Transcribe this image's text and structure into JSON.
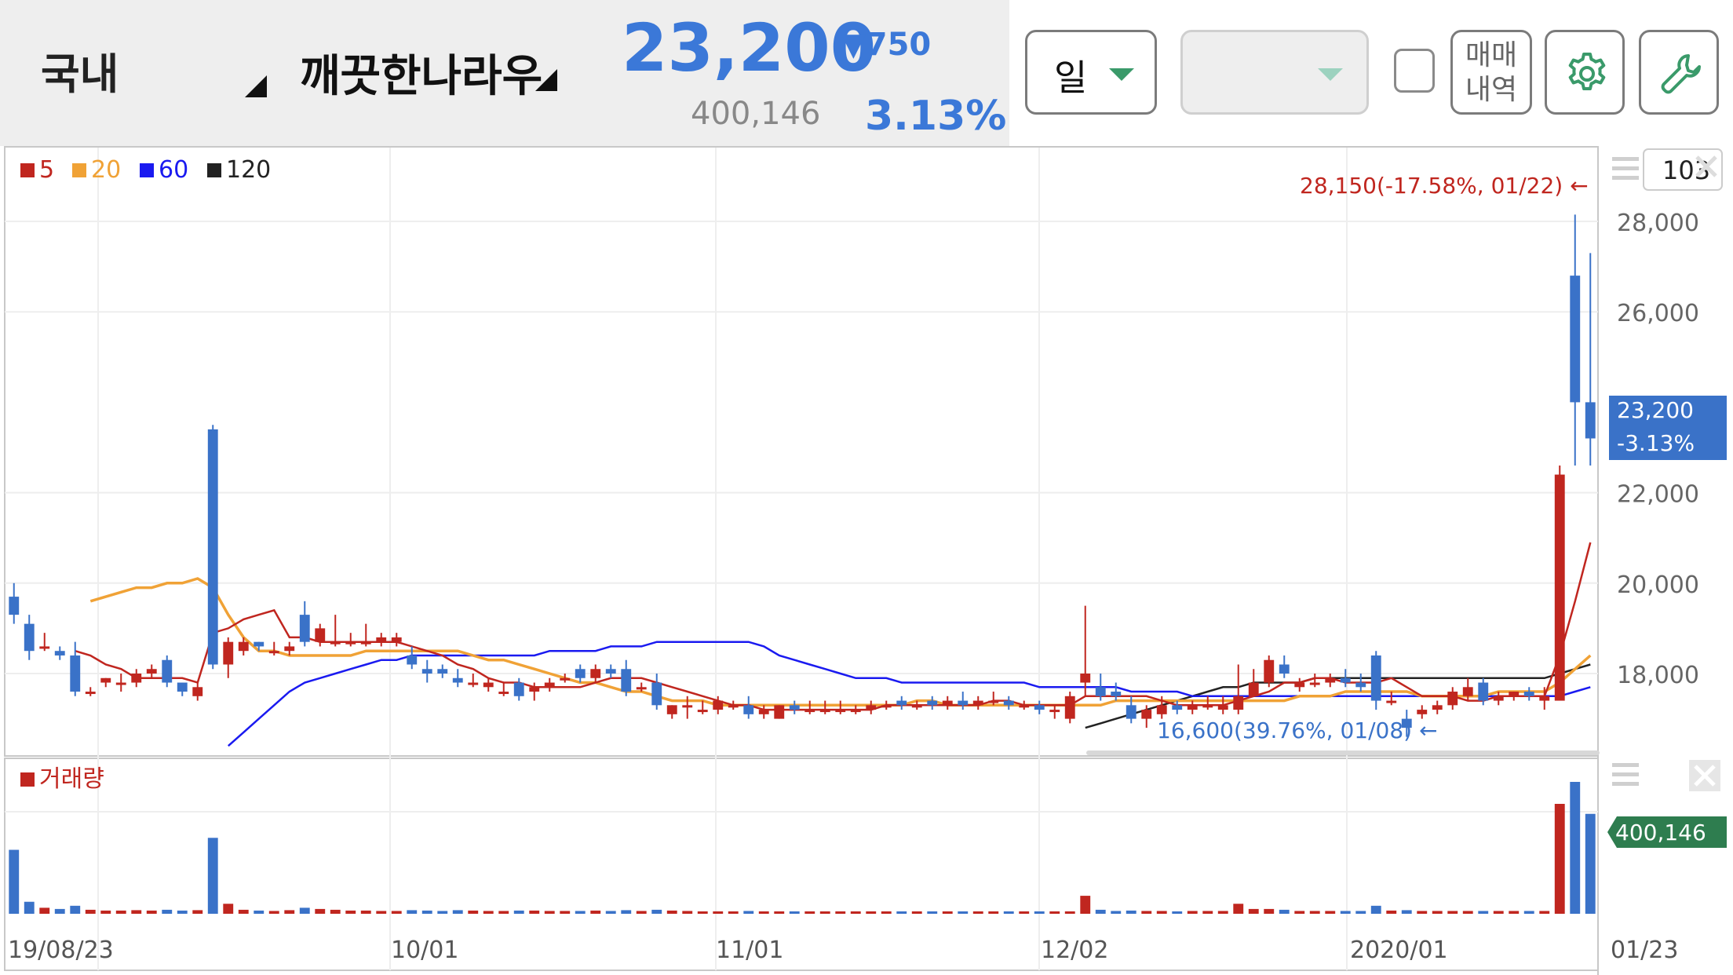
{
  "header": {
    "market": "국내",
    "stock_name": "깨끗한나라우",
    "price": "23,200",
    "change": "▼750",
    "volume": "400,146",
    "change_pct": "3.13%"
  },
  "controls": {
    "period": "일",
    "trade_history": "매매\n내역",
    "icons": [
      "gear-icon",
      "wrench-icon",
      "hamburger-icon",
      "close-icon"
    ],
    "accent_color": "#3a9a6a"
  },
  "price_panel": {
    "legend": [
      {
        "label": "5",
        "color": "#c0261f"
      },
      {
        "label": "20",
        "color": "#f0a236"
      },
      {
        "label": "60",
        "color": "#1a1af0"
      },
      {
        "label": "120",
        "color": "#222222"
      }
    ],
    "count_box": "103",
    "y_ticks": [
      "28,000",
      "26,000",
      "22,000",
      "20,000",
      "18,000"
    ],
    "current_tag": [
      "23,200",
      "-3.13%"
    ],
    "high_annotation": "28,150(-17.58%, 01/22) ←",
    "low_annotation": "16,600(39.76%, 01/08) ←"
  },
  "volume_panel": {
    "label": "거래량",
    "current_tag": "400,146"
  },
  "x_axis": {
    "labels": [
      "19/08/23",
      "10/01",
      "11/01",
      "12/02",
      "2020/01",
      "01/23"
    ]
  },
  "chart_data": {
    "type": "candlestick",
    "title": "",
    "x_labels": [
      "19/08/23",
      "10/01",
      "11/01",
      "12/02",
      "2020/01",
      "01/23"
    ],
    "y_ticks": [
      28000,
      26000,
      22000,
      20000,
      18000
    ],
    "ylim": [
      16300,
      28600
    ],
    "up_color": "#c0261f",
    "down_color": "#3a72c8",
    "candles": [
      [
        19700,
        20000,
        19300,
        19100,
        1600
      ],
      [
        19100,
        19300,
        18500,
        18300,
        300
      ],
      [
        18600,
        18900,
        18600,
        18500,
        150
      ],
      [
        18500,
        18600,
        18400,
        18300,
        120
      ],
      [
        18400,
        18700,
        17600,
        17500,
        200
      ],
      [
        17600,
        17700,
        17600,
        17500,
        100
      ],
      [
        17800,
        17900,
        17900,
        17700,
        80
      ],
      [
        17800,
        18000,
        17800,
        17600,
        80
      ],
      [
        17800,
        18100,
        18000,
        17700,
        90
      ],
      [
        18000,
        18200,
        18100,
        17900,
        80
      ],
      [
        18300,
        18400,
        17800,
        17700,
        100
      ],
      [
        17800,
        17800,
        17600,
        17500,
        80
      ],
      [
        17500,
        17800,
        17700,
        17400,
        90
      ],
      [
        23400,
        23500,
        18200,
        18100,
        1900
      ],
      [
        18200,
        18800,
        18700,
        17900,
        250
      ],
      [
        18500,
        18800,
        18700,
        18400,
        100
      ],
      [
        18700,
        18700,
        18600,
        18500,
        80
      ],
      [
        18500,
        18700,
        18500,
        18400,
        70
      ],
      [
        18500,
        18700,
        18600,
        18400,
        90
      ],
      [
        19300,
        19600,
        18700,
        18600,
        150
      ],
      [
        18700,
        19100,
        19000,
        18600,
        120
      ],
      [
        18700,
        19300,
        18700,
        18600,
        100
      ],
      [
        18700,
        18900,
        18700,
        18600,
        80
      ],
      [
        18700,
        19100,
        18700,
        18600,
        80
      ],
      [
        18700,
        18900,
        18800,
        18600,
        70
      ],
      [
        18700,
        18900,
        18800,
        18600,
        70
      ],
      [
        18400,
        18600,
        18200,
        18100,
        90
      ],
      [
        18100,
        18300,
        18000,
        17800,
        80
      ],
      [
        18100,
        18200,
        18000,
        17900,
        70
      ],
      [
        17900,
        18100,
        17800,
        17700,
        90
      ],
      [
        17800,
        18000,
        17800,
        17700,
        80
      ],
      [
        17700,
        17900,
        17800,
        17600,
        70
      ],
      [
        17600,
        17800,
        17600,
        17500,
        70
      ],
      [
        17800,
        17900,
        17500,
        17400,
        80
      ],
      [
        17600,
        17800,
        17700,
        17400,
        80
      ],
      [
        17700,
        17900,
        17800,
        17600,
        70
      ],
      [
        17900,
        18000,
        17900,
        17800,
        70
      ],
      [
        18100,
        18200,
        17900,
        17800,
        70
      ],
      [
        17900,
        18200,
        18100,
        17800,
        80
      ],
      [
        18100,
        18200,
        18000,
        17900,
        70
      ],
      [
        18100,
        18300,
        17600,
        17500,
        90
      ],
      [
        17700,
        17800,
        17700,
        17600,
        70
      ],
      [
        17800,
        18000,
        17300,
        17200,
        100
      ],
      [
        17100,
        17300,
        17300,
        17000,
        80
      ],
      [
        17300,
        17500,
        17300,
        17000,
        70
      ],
      [
        17200,
        17400,
        17200,
        17100,
        60
      ],
      [
        17200,
        17500,
        17400,
        17100,
        60
      ],
      [
        17300,
        17400,
        17300,
        17200,
        60
      ],
      [
        17300,
        17500,
        17100,
        17000,
        70
      ],
      [
        17100,
        17300,
        17200,
        17000,
        60
      ],
      [
        17000,
        17300,
        17300,
        17000,
        60
      ],
      [
        17300,
        17400,
        17200,
        17100,
        60
      ],
      [
        17200,
        17400,
        17200,
        17100,
        60
      ],
      [
        17200,
        17400,
        17200,
        17100,
        60
      ],
      [
        17200,
        17400,
        17200,
        17100,
        60
      ],
      [
        17200,
        17300,
        17200,
        17100,
        60
      ],
      [
        17200,
        17400,
        17300,
        17100,
        60
      ],
      [
        17300,
        17400,
        17300,
        17200,
        60
      ],
      [
        17400,
        17500,
        17300,
        17200,
        60
      ],
      [
        17300,
        17400,
        17300,
        17200,
        60
      ],
      [
        17400,
        17500,
        17300,
        17200,
        60
      ],
      [
        17300,
        17500,
        17400,
        17200,
        60
      ],
      [
        17400,
        17600,
        17300,
        17200,
        60
      ],
      [
        17300,
        17500,
        17400,
        17200,
        60
      ],
      [
        17400,
        17600,
        17400,
        17300,
        60
      ],
      [
        17400,
        17500,
        17300,
        17200,
        60
      ],
      [
        17300,
        17400,
        17300,
        17200,
        60
      ],
      [
        17300,
        17400,
        17200,
        17100,
        60
      ],
      [
        17200,
        17300,
        17200,
        17000,
        60
      ],
      [
        17000,
        17600,
        17500,
        16900,
        60
      ],
      [
        17800,
        19500,
        18000,
        17500,
        450
      ],
      [
        17700,
        18000,
        17500,
        17400,
        100
      ],
      [
        17600,
        17800,
        17500,
        17400,
        70
      ],
      [
        17300,
        17500,
        17000,
        16900,
        80
      ],
      [
        17000,
        17300,
        17200,
        16800,
        70
      ],
      [
        17100,
        17500,
        17300,
        17000,
        70
      ],
      [
        17300,
        17400,
        17200,
        17100,
        60
      ],
      [
        17200,
        17400,
        17300,
        17100,
        70
      ],
      [
        17300,
        17500,
        17300,
        17200,
        70
      ],
      [
        17200,
        17500,
        17300,
        17100,
        70
      ],
      [
        17200,
        18200,
        17500,
        17100,
        250
      ],
      [
        17500,
        18100,
        17800,
        17500,
        120
      ],
      [
        17800,
        18400,
        18300,
        17700,
        120
      ],
      [
        18200,
        18400,
        18000,
        17900,
        100
      ],
      [
        17700,
        17900,
        17800,
        17600,
        70
      ],
      [
        17800,
        18000,
        17800,
        17700,
        70
      ],
      [
        17800,
        18000,
        17900,
        17700,
        70
      ],
      [
        17900,
        18100,
        17800,
        17700,
        70
      ],
      [
        17800,
        18000,
        17700,
        17600,
        70
      ],
      [
        18400,
        18500,
        17400,
        17200,
        200
      ],
      [
        17400,
        17600,
        17400,
        17300,
        80
      ],
      [
        17000,
        17200,
        16800,
        16600,
        90
      ],
      [
        17100,
        17300,
        17200,
        17000,
        70
      ],
      [
        17200,
        17400,
        17300,
        17100,
        70
      ],
      [
        17300,
        17700,
        17600,
        17200,
        70
      ],
      [
        17500,
        17900,
        17700,
        17400,
        70
      ],
      [
        17800,
        17900,
        17400,
        17300,
        70
      ],
      [
        17400,
        17600,
        17500,
        17300,
        70
      ],
      [
        17500,
        17600,
        17600,
        17400,
        70
      ],
      [
        17600,
        17700,
        17500,
        17400,
        70
      ],
      [
        17400,
        17700,
        17500,
        17200,
        70
      ],
      [
        17400,
        22600,
        22400,
        17400,
        2750
      ],
      [
        26800,
        28150,
        24000,
        22600,
        3300
      ],
      [
        24000,
        27300,
        23200,
        22600,
        2500
      ]
    ],
    "ma": {
      "ma5": [
        null,
        null,
        null,
        null,
        18500,
        18400,
        18200,
        18100,
        17900,
        17900,
        17900,
        17900,
        17800,
        18900,
        19000,
        19200,
        19300,
        19400,
        18800,
        18800,
        18700,
        18700,
        18700,
        18700,
        18700,
        18700,
        18600,
        18500,
        18400,
        18200,
        18100,
        17900,
        17800,
        17800,
        17700,
        17700,
        17700,
        17700,
        17800,
        17900,
        17900,
        17900,
        17800,
        17700,
        17600,
        17500,
        17400,
        17300,
        17300,
        17200,
        17200,
        17200,
        17200,
        17200,
        17200,
        17200,
        17200,
        17300,
        17300,
        17300,
        17300,
        17300,
        17300,
        17300,
        17400,
        17400,
        17300,
        17300,
        17300,
        17300,
        17500,
        17500,
        17500,
        17500,
        17500,
        17400,
        17300,
        17300,
        17300,
        17300,
        17400,
        17500,
        17600,
        17800,
        17800,
        17900,
        17900,
        17800,
        17800,
        17800,
        17900,
        17700,
        17500,
        17500,
        17500,
        17400,
        17400,
        17500,
        17500,
        17500,
        17500,
        18400,
        19600,
        20900
      ],
      "ma20": [
        null,
        null,
        null,
        null,
        null,
        19600,
        19700,
        19800,
        19900,
        19900,
        20000,
        20000,
        20100,
        19900,
        19300,
        18800,
        18500,
        18500,
        18400,
        18400,
        18400,
        18400,
        18400,
        18500,
        18500,
        18500,
        18500,
        18500,
        18500,
        18500,
        18400,
        18300,
        18300,
        18200,
        18100,
        18000,
        17900,
        17800,
        17800,
        17700,
        17600,
        17600,
        17500,
        17400,
        17400,
        17400,
        17300,
        17300,
        17300,
        17300,
        17300,
        17300,
        17300,
        17300,
        17300,
        17300,
        17300,
        17300,
        17300,
        17400,
        17400,
        17300,
        17300,
        17300,
        17300,
        17300,
        17300,
        17300,
        17300,
        17300,
        17300,
        17300,
        17400,
        17400,
        17400,
        17400,
        17400,
        17400,
        17400,
        17400,
        17400,
        17400,
        17400,
        17400,
        17500,
        17500,
        17500,
        17600,
        17600,
        17600,
        17600,
        17600,
        17500,
        17500,
        17500,
        17500,
        17500,
        17600,
        17600,
        17600,
        17600,
        17800,
        18100,
        18400
      ],
      "ma60": [
        null,
        null,
        null,
        null,
        null,
        null,
        null,
        null,
        null,
        null,
        null,
        null,
        null,
        null,
        16400,
        16700,
        17000,
        17300,
        17600,
        17800,
        17900,
        18000,
        18100,
        18200,
        18300,
        18300,
        18400,
        18400,
        18400,
        18400,
        18400,
        18400,
        18400,
        18400,
        18400,
        18500,
        18500,
        18500,
        18500,
        18600,
        18600,
        18600,
        18700,
        18700,
        18700,
        18700,
        18700,
        18700,
        18700,
        18600,
        18400,
        18300,
        18200,
        18100,
        18000,
        17900,
        17900,
        17900,
        17800,
        17800,
        17800,
        17800,
        17800,
        17800,
        17800,
        17800,
        17800,
        17700,
        17700,
        17700,
        17700,
        17700,
        17700,
        17600,
        17600,
        17600,
        17600,
        17500,
        17500,
        17500,
        17500,
        17500,
        17500,
        17500,
        17500,
        17500,
        17500,
        17500,
        17500,
        17500,
        17500,
        17500,
        17500,
        17500,
        17500,
        17500,
        17500,
        17500,
        17500,
        17500,
        17500,
        17500,
        17600,
        17700
      ],
      "ma120": [
        null,
        null,
        null,
        null,
        null,
        null,
        null,
        null,
        null,
        null,
        null,
        null,
        null,
        null,
        null,
        null,
        null,
        null,
        null,
        null,
        null,
        null,
        null,
        null,
        null,
        null,
        null,
        null,
        null,
        null,
        null,
        null,
        null,
        null,
        null,
        null,
        null,
        null,
        null,
        null,
        null,
        null,
        null,
        null,
        null,
        null,
        null,
        null,
        null,
        null,
        null,
        null,
        null,
        null,
        null,
        null,
        null,
        null,
        null,
        null,
        null,
        null,
        null,
        null,
        null,
        null,
        null,
        null,
        null,
        null,
        16800,
        16900,
        17000,
        17100,
        17200,
        17300,
        17400,
        17500,
        17600,
        17700,
        17700,
        17800,
        17800,
        17800,
        17800,
        17900,
        17900,
        17900,
        17900,
        17900,
        17900,
        17900,
        17900,
        17900,
        17900,
        17900,
        17900,
        17900,
        17900,
        17900,
        17900,
        18000,
        18100,
        18200
      ]
    }
  }
}
